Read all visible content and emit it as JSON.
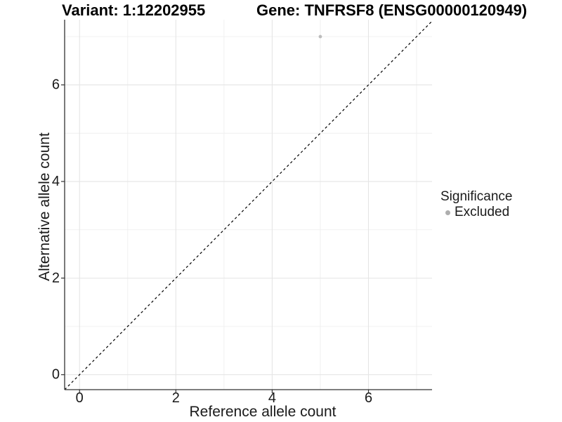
{
  "chart_data": {
    "type": "scatter",
    "title_left": "Variant: 1:12202955",
    "title_right": "Gene: TNFRSF8 (ENSG00000120949)",
    "xlabel": "Reference allele count",
    "ylabel": "Alternative allele count",
    "xlim": [
      -0.31,
      7.32
    ],
    "ylim": [
      -0.31,
      7.35
    ],
    "xticks": [
      0,
      2,
      4,
      6
    ],
    "yticks": [
      0,
      2,
      4,
      6
    ],
    "xticks_minor": [
      1,
      3,
      5,
      7
    ],
    "yticks_minor": [
      1,
      3,
      5,
      7
    ],
    "grid": "major+minor",
    "points": [
      {
        "x": 5,
        "y": 7,
        "series": "Excluded"
      }
    ],
    "reference_line": {
      "type": "identity",
      "equation": "y = x",
      "style": "dashed",
      "color": "#000000"
    },
    "legend": {
      "position": "right",
      "title": "Significance",
      "entries": [
        {
          "label": "Excluded",
          "color": "#aeaeae",
          "marker": "circle"
        }
      ]
    },
    "point_color": "#bcbcbc"
  },
  "colors": {
    "background": "#ffffff",
    "grid_major": "#e5e5e5",
    "grid_minor": "#efefef",
    "axis_line": "#333333",
    "tick_mark": "#333333",
    "tick_text": "#1a1a1a",
    "title_text": "#000000"
  }
}
